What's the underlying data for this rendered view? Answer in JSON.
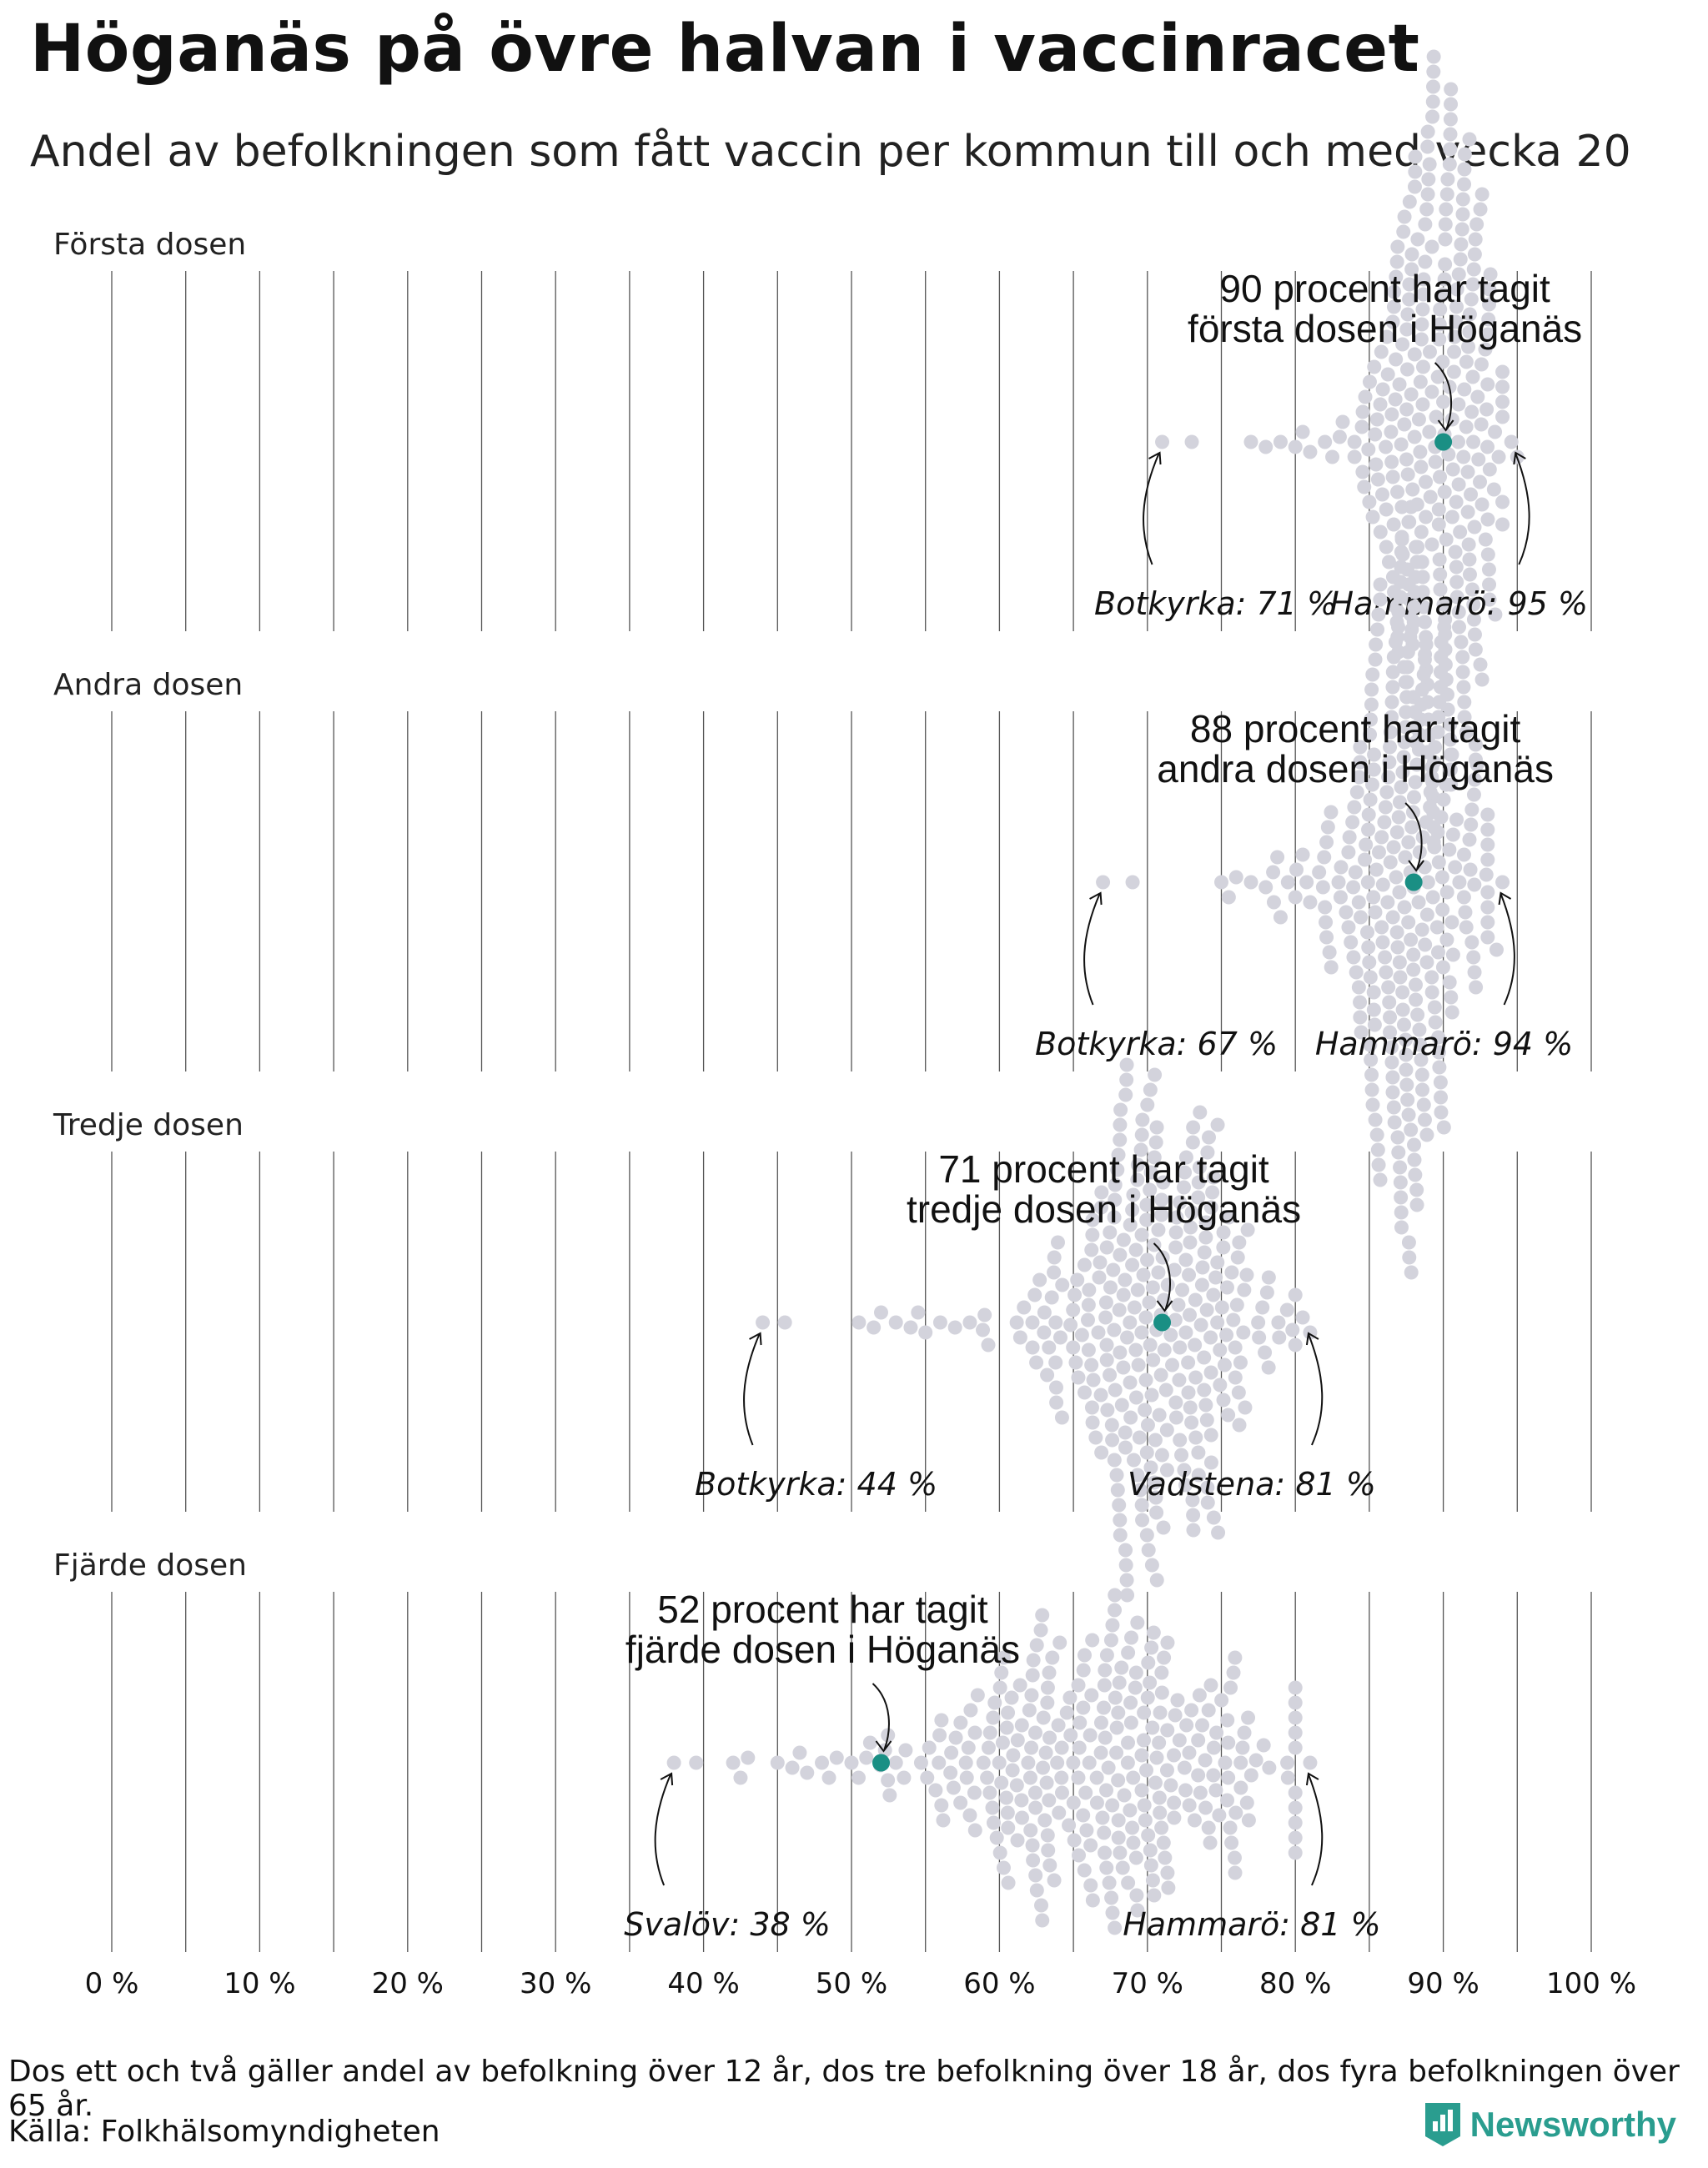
{
  "title": "Höganäs på övre halvan i vaccinracet",
  "subtitle": "Andel av befolkningen som fått vaccin per kommun till och med vecka 20",
  "note": "Dos ett och två gäller andel av befolkning över 12 år, dos tre befolkning över 18 år, dos fyra befolkningen över 65 år.",
  "source": "Källa: Folkhälsomyndigheten",
  "brand": "Newsworthy",
  "colors": {
    "highlight": "#1a8f84",
    "dots": "#d3d3dc",
    "grid": "#555555",
    "brand": "#2a9d8f"
  },
  "chart_data": {
    "type": "scatter",
    "subtype": "beeswarm",
    "x_ticks": [
      "0 %",
      "10 %",
      "20 %",
      "30 %",
      "40 %",
      "50 %",
      "60 %",
      "70 %",
      "80 %",
      "90 %",
      "100 %"
    ],
    "xlim": [
      0,
      100
    ],
    "grid": "vertical lines every 5 %",
    "panels": [
      {
        "label": "Första dosen",
        "highlight": {
          "name": "Höganäs",
          "value": 90
        },
        "annotation": [
          "90 procent har tagit",
          "första dosen i Höganäs"
        ],
        "min": {
          "text": "Botkyrka: 71 %",
          "value": 71
        },
        "max": {
          "text": "Hammarö: 95 %",
          "value": 95
        },
        "distribution": {
          "center": 89.5,
          "spread": 2.4,
          "count": 290,
          "tail": [
            71,
            73,
            77,
            78,
            79,
            80,
            80.5,
            81,
            82,
            82.5,
            83,
            84,
            84.5,
            85,
            95,
            94.6
          ]
        }
      },
      {
        "label": "Andra dosen",
        "highlight": {
          "name": "Höganäs",
          "value": 88
        },
        "annotation": [
          "88 procent har tagit",
          "andra dosen i Höganäs"
        ],
        "min": {
          "text": "Botkyrka: 67 %",
          "value": 67
        },
        "max": {
          "text": "Hammarö: 94 %",
          "value": 94
        },
        "distribution": {
          "center": 87.6,
          "spread": 2.6,
          "count": 290,
          "tail": [
            67,
            69,
            75,
            75.5,
            76,
            77,
            78,
            78.5,
            79,
            79.5,
            80,
            80.5,
            81,
            82,
            94,
            93.6
          ]
        }
      },
      {
        "label": "Tredje dosen",
        "highlight": {
          "name": "Höganäs",
          "value": 71
        },
        "annotation": [
          "71 procent har tagit",
          "tredje dosen i Höganäs"
        ],
        "min": {
          "text": "Botkyrka: 44 %",
          "value": 44
        },
        "max": {
          "text": "Vadstena: 81 %",
          "value": 81
        },
        "distribution": {
          "center": 70,
          "spread": 4.2,
          "count": 290,
          "tail": [
            44,
            45.5,
            50.5,
            51.5,
            52,
            53,
            54,
            54.5,
            55,
            56,
            57,
            58,
            59,
            81,
            80.5,
            80
          ]
        }
      },
      {
        "label": "Fjärde dosen",
        "highlight": {
          "name": "Höganäs",
          "value": 52
        },
        "annotation": [
          "52 procent har tagit",
          "fjärde dosen i Höganäs"
        ],
        "min": {
          "text": "Svalöv: 38 %",
          "value": 38
        },
        "max": {
          "text": "Hammarö: 81 %",
          "value": 81
        },
        "distribution": {
          "center": 67,
          "spread": 6.5,
          "count": 290,
          "tail": [
            38,
            39.5,
            42.5,
            43,
            45,
            46,
            46.5,
            47,
            48,
            49,
            50,
            51,
            53,
            81,
            80,
            79.5
          ]
        }
      }
    ]
  }
}
